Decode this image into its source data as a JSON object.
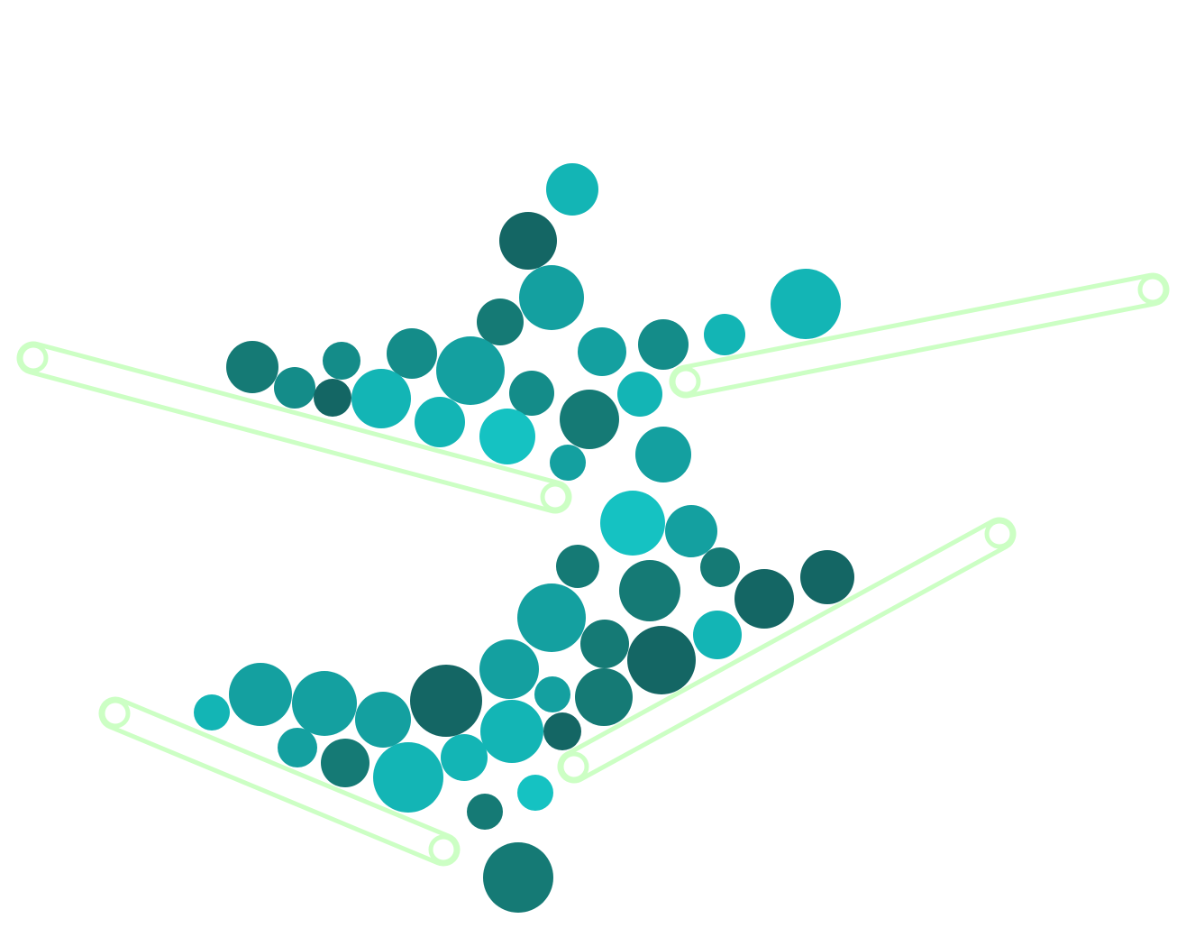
{
  "scene": {
    "background": "#ffffff",
    "conveyor_color": "#ccffc4",
    "ball_palette": [
      "#15c2c2",
      "#13b5b5",
      "#14a0a0",
      "#148c89",
      "#157a75",
      "#146664"
    ]
  }
}
